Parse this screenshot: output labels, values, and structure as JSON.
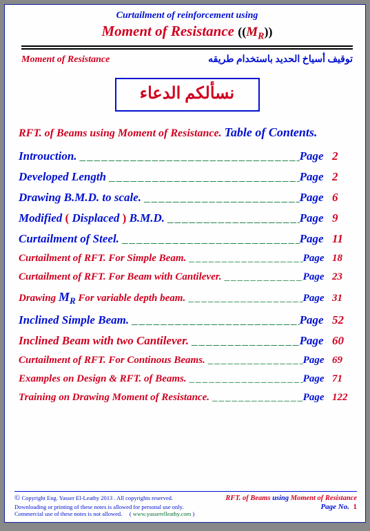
{
  "header": {
    "line1": "Curtailment of reinforcement using",
    "line2_main": "Moment of Resistance",
    "line2_paren_open": "((",
    "line2_mr_m": "M",
    "line2_mr_r": "R",
    "line2_paren_close": "))",
    "line1_color": "#0010d0",
    "line2_color": "#d00020"
  },
  "subheader": {
    "left": "Moment of Resistance",
    "right_ar": "توقيف أسياخ الحديد باستخدام طريقه",
    "left_color": "#d00020",
    "right_color": "#0010d0"
  },
  "arabic_box": {
    "text": "نسألكم الدعاء",
    "border_color": "#0010d0",
    "text_color": "#d00020"
  },
  "toc_title": {
    "red_part": "RFT. of Beams using Moment of Resistance.",
    "blue_part": "Table of Contents."
  },
  "toc": [
    {
      "html": "<span class='blue'>Introuction.</span>",
      "page": "2",
      "fs": 17
    },
    {
      "html": "<span class='blue'>Developed Length</span>",
      "page": "2",
      "fs": 17
    },
    {
      "html": "<span class='blue'>Drawing B.M.D. to scale.</span>",
      "page": "6",
      "fs": 17
    },
    {
      "html": "<span class='blue'>Modified </span><span class='red' style='font-style:normal'>(</span><span class='blue'> Displaced </span><span class='red' style='font-style:normal'>)</span><span class='blue'> B.M.D.</span>",
      "page": "9",
      "fs": 17
    },
    {
      "html": "<span class='blue'>Curtailment of Steel.</span>",
      "page": "11",
      "fs": 17
    },
    {
      "html": "<span class='red'>Curtailment of RFT. For Simple Beam.</span>",
      "page": "18",
      "fs": 15
    },
    {
      "html": "<span class='red'>Curtailment of RFT. For Beam with Cantilever.</span>",
      "page": "23",
      "fs": 15
    },
    {
      "html": "<span class='red'>Drawing </span><span class='blue' style='font-size:18px'>M</span><span class='blue' style='font-size:13px;vertical-align:sub'>R</span><span class='red'> For variable depth beam.</span>",
      "page": "31",
      "fs": 15
    },
    {
      "html": "<span class='blue'>Inclined Simple Beam.</span>",
      "page": "52",
      "fs": 17
    },
    {
      "html": "<span class='red'>Inclined Beam with two Cantilever.</span>",
      "page": "60",
      "fs": 17
    },
    {
      "html": "<span class='red'>Curtailment of RFT. For Continous Beams.</span>",
      "page": "69",
      "fs": 15
    },
    {
      "html": "<span class='red'>Examples on Design &amp; RFT. of Beams.</span>",
      "page": "71",
      "fs": 15
    },
    {
      "html": "<span class='red'>Training on Drawing Moment of Resistance.</span>",
      "page": "122",
      "fs": 15
    }
  ],
  "page_word": "Page",
  "dash_fill": "______________________________________",
  "footer": {
    "copy1": "Copyright Eng. Yasser El-Leathy 2013 . All copyrights reserved.",
    "copy2": "Downloading or printing of these notes is allowed for personal use only.",
    "copy3a": "Commercial use of these notes is not allowed.",
    "copy3b_open": "(",
    "copy3b_url": "www.yasserelleathy.com",
    "copy3b_close": ")",
    "right1_a": "RFT. of Beams",
    "right1_b": " using ",
    "right1_c": "Moment of Resistance",
    "right2_label": "Page No.",
    "right2_num": "1"
  }
}
